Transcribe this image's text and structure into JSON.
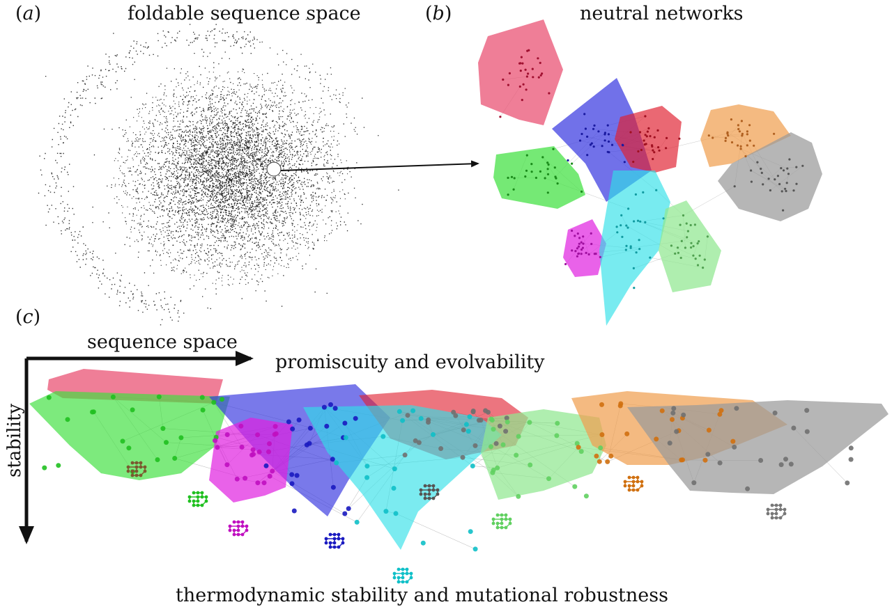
{
  "panels": {
    "a": {
      "tag": "a",
      "title": "foldable sequence space"
    },
    "b": {
      "tag": "b",
      "title": "neutral networks"
    },
    "c": {
      "tag": "c",
      "x_axis_label": "sequence space",
      "y_axis_label": "stability",
      "top_label": "promiscuity and evolvability",
      "bottom_label": "thermodynamic stability and mutational robustness"
    }
  },
  "colors": {
    "pink": "#e8476b",
    "blue": "#3a3ae0",
    "red": "#e02030",
    "orange": "#f0a050",
    "grey": "#9a9a9a",
    "green": "#40e040",
    "magenta": "#e020e0",
    "cyan": "#30e0e8",
    "lightgreen": "#90e890"
  }
}
